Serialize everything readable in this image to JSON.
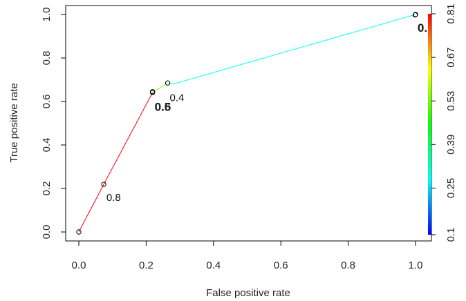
{
  "chart_data": {
    "type": "line",
    "xlabel": "False positive rate",
    "ylabel": "True positive rate",
    "xlim": [
      0.0,
      1.0
    ],
    "ylim": [
      0.0,
      1.0
    ],
    "x_ticks": [
      "0.0",
      "0.2",
      "0.4",
      "0.6",
      "0.8",
      "1.0"
    ],
    "y_ticks": [
      "0.0",
      "0.2",
      "0.4",
      "0.6",
      "0.8",
      "1.0"
    ],
    "grid": false,
    "series": [
      {
        "x": [
          0.0,
          0.074,
          0.219,
          0.264,
          0.28,
          1.0
        ],
        "y": [
          0.0,
          0.219,
          0.641,
          0.685,
          0.68,
          1.0
        ],
        "colors": [
          "#ff0000",
          "#ff0000",
          "#7fff00",
          "#00ffcc",
          "#00ffff"
        ]
      }
    ],
    "markers": [
      {
        "x": 0.0,
        "y": 0.0
      },
      {
        "x": 0.074,
        "y": 0.219
      },
      {
        "x": 0.219,
        "y": 0.641
      },
      {
        "x": 0.219,
        "y": 0.645
      },
      {
        "x": 0.264,
        "y": 0.685
      },
      {
        "x": 0.999,
        "y": 0.998
      },
      {
        "x": 1.0,
        "y": 1.0
      }
    ],
    "cutoff_labels": [
      {
        "text": "0.8",
        "x": 0.082,
        "y": 0.158,
        "bold": false
      },
      {
        "text": "0.5",
        "x": 0.225,
        "y": 0.573,
        "bold": true
      },
      {
        "text": "0.6",
        "x": 0.225,
        "y": 0.573,
        "bold": true
      },
      {
        "text": "0.4",
        "x": 0.27,
        "y": 0.618,
        "bold": false
      },
      {
        "text": "0.",
        "x": 1.006,
        "y": 0.937,
        "bold": true
      },
      {
        "text": "0.",
        "x": 1.006,
        "y": 0.937,
        "bold": true
      }
    ],
    "colorbar": {
      "ticks": [
        "0.1",
        "0.25",
        "0.39",
        "0.53",
        "0.67",
        "0.81"
      ],
      "range": [
        0.1,
        0.81
      ],
      "colors": [
        "#0000ff",
        "#00ffff",
        "#00ff00",
        "#ffff00",
        "#ff0000"
      ]
    }
  }
}
